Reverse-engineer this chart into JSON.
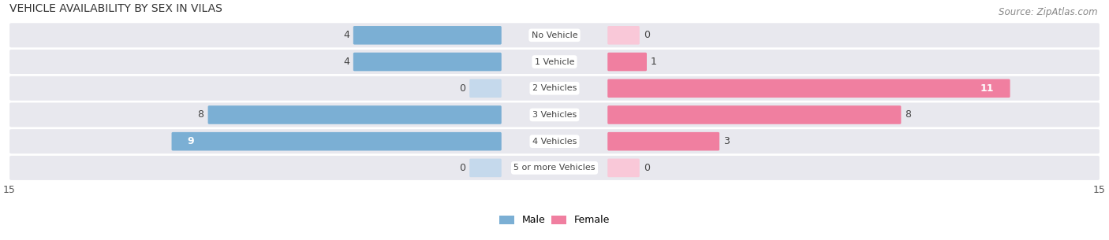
{
  "title": "VEHICLE AVAILABILITY BY SEX IN VILAS",
  "source": "Source: ZipAtlas.com",
  "categories": [
    "No Vehicle",
    "1 Vehicle",
    "2 Vehicles",
    "3 Vehicles",
    "4 Vehicles",
    "5 or more Vehicles"
  ],
  "male_values": [
    4,
    4,
    0,
    8,
    9,
    0
  ],
  "female_values": [
    0,
    1,
    11,
    8,
    3,
    0
  ],
  "male_color": "#7bafd4",
  "female_color": "#f07fa0",
  "male_color_light": "#c5d9ec",
  "female_color_light": "#f9c8d8",
  "bar_bg_color": "#e8e8ee",
  "axis_limit": 15,
  "bar_height": 0.62,
  "label_fontsize": 9,
  "title_fontsize": 10,
  "source_fontsize": 8.5
}
